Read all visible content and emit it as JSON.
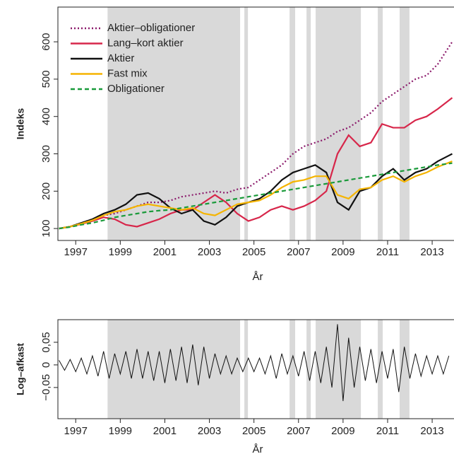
{
  "chart_data": [
    {
      "type": "line",
      "x_label": "År",
      "y_label": "Indeks",
      "x": [
        1996.25,
        1996.75,
        1997.25,
        1997.75,
        1998.25,
        1998.75,
        1999.25,
        1999.75,
        2000.25,
        2000.75,
        2001.25,
        2001.75,
        2002.25,
        2002.75,
        2003.25,
        2003.75,
        2004.25,
        2004.75,
        2005.25,
        2005.75,
        2006.25,
        2006.75,
        2007.25,
        2007.75,
        2008.25,
        2008.75,
        2009.25,
        2009.75,
        2010.25,
        2010.75,
        2011.25,
        2011.75,
        2012.25,
        2012.75,
        2013.25,
        2013.9
      ],
      "series": [
        {
          "name": "Aktier–obligationer",
          "color": "#8b1a6b",
          "dash": "dotted",
          "values": [
            100,
            105,
            115,
            125,
            135,
            140,
            150,
            160,
            170,
            170,
            175,
            185,
            190,
            195,
            200,
            195,
            205,
            210,
            230,
            250,
            270,
            300,
            320,
            330,
            340,
            360,
            370,
            390,
            410,
            440,
            460,
            480,
            500,
            510,
            540,
            600
          ]
        },
        {
          "name": "Lang–kort aktier",
          "color": "#d7264a",
          "dash": "solid",
          "values": [
            100,
            105,
            112,
            120,
            130,
            125,
            110,
            105,
            115,
            125,
            140,
            150,
            150,
            170,
            190,
            170,
            140,
            120,
            130,
            150,
            160,
            150,
            160,
            175,
            200,
            300,
            350,
            320,
            330,
            380,
            370,
            370,
            390,
            400,
            420,
            450
          ]
        },
        {
          "name": "Aktier",
          "color": "#111111",
          "dash": "solid",
          "values": [
            100,
            105,
            115,
            125,
            140,
            150,
            165,
            190,
            195,
            180,
            155,
            140,
            150,
            120,
            110,
            130,
            160,
            170,
            180,
            200,
            230,
            250,
            260,
            270,
            250,
            170,
            150,
            200,
            210,
            240,
            260,
            230,
            250,
            260,
            280,
            300
          ]
        },
        {
          "name": "Fast mix",
          "color": "#f5b400",
          "dash": "solid",
          "values": [
            100,
            105,
            113,
            122,
            135,
            145,
            150,
            160,
            165,
            160,
            155,
            150,
            155,
            140,
            135,
            150,
            165,
            170,
            175,
            190,
            210,
            225,
            230,
            240,
            240,
            190,
            180,
            205,
            210,
            230,
            240,
            225,
            240,
            250,
            265,
            280
          ]
        },
        {
          "name": "Obligationer",
          "color": "#1a9a3a",
          "dash": "dashed",
          "values": [
            100,
            104,
            110,
            115,
            122,
            130,
            135,
            140,
            145,
            148,
            150,
            155,
            160,
            165,
            170,
            175,
            180,
            185,
            190,
            195,
            200,
            205,
            210,
            215,
            220,
            225,
            230,
            235,
            240,
            245,
            250,
            255,
            260,
            265,
            270,
            275
          ]
        }
      ],
      "xlim": [
        1996.2,
        2013.98
      ],
      "ylim": [
        68,
        693
      ],
      "xticks": [
        1997,
        1999,
        2001,
        2003,
        2005,
        2007,
        2009,
        2011,
        2013
      ],
      "yticks": [
        100,
        200,
        300,
        400,
        500,
        600
      ],
      "shaded": [
        [
          1998.43,
          2004.38
        ],
        [
          2004.57,
          2004.73
        ],
        [
          2006.6,
          2006.85
        ],
        [
          2007.36,
          2007.55
        ],
        [
          2007.77,
          2009.8
        ],
        [
          2010.56,
          2010.78
        ],
        [
          2011.54,
          2011.98
        ]
      ],
      "shade_color": "#d9d9d9",
      "legend": "upper left"
    },
    {
      "type": "line",
      "x_label": "År",
      "y_label": "Log–afkast",
      "color": "#111111",
      "x": [
        1996.25,
        1996.5,
        1996.75,
        1997,
        1997.25,
        1997.5,
        1997.75,
        1998,
        1998.25,
        1998.5,
        1998.75,
        1999,
        1999.25,
        1999.5,
        1999.75,
        2000,
        2000.25,
        2000.5,
        2000.75,
        2001,
        2001.25,
        2001.5,
        2001.75,
        2002,
        2002.25,
        2002.5,
        2002.75,
        2003,
        2003.25,
        2003.5,
        2003.75,
        2004,
        2004.25,
        2004.5,
        2004.75,
        2005,
        2005.25,
        2005.5,
        2005.75,
        2006,
        2006.25,
        2006.5,
        2006.75,
        2007,
        2007.25,
        2007.5,
        2007.75,
        2008,
        2008.25,
        2008.5,
        2008.75,
        2009,
        2009.25,
        2009.5,
        2009.75,
        2010,
        2010.25,
        2010.5,
        2010.75,
        2011,
        2011.25,
        2011.5,
        2011.75,
        2012,
        2012.25,
        2012.5,
        2012.75,
        2013,
        2013.25,
        2013.5,
        2013.75
      ],
      "values": [
        0.01,
        -0.012,
        0.012,
        -0.015,
        0.015,
        -0.02,
        0.02,
        -0.025,
        0.03,
        -0.03,
        0.025,
        -0.02,
        0.03,
        -0.03,
        0.035,
        -0.03,
        0.03,
        -0.035,
        0.03,
        -0.04,
        0.035,
        -0.035,
        0.04,
        -0.04,
        0.045,
        -0.045,
        0.04,
        -0.03,
        0.025,
        -0.02,
        0.02,
        -0.02,
        0.015,
        -0.015,
        0.015,
        -0.015,
        0.015,
        -0.02,
        0.02,
        -0.03,
        0.025,
        -0.02,
        0.02,
        -0.025,
        0.03,
        -0.035,
        0.03,
        -0.04,
        0.04,
        -0.05,
        0.09,
        -0.08,
        0.06,
        -0.05,
        0.04,
        -0.035,
        0.035,
        -0.04,
        0.03,
        -0.03,
        0.035,
        -0.06,
        0.04,
        -0.03,
        0.025,
        -0.025,
        0.02,
        -0.02,
        0.02,
        -0.02,
        0.02
      ],
      "xlim": [
        1996.2,
        2013.98
      ],
      "ylim": [
        -0.119,
        0.1
      ],
      "xticks": [
        1997,
        1999,
        2001,
        2003,
        2005,
        2007,
        2009,
        2011,
        2013
      ],
      "yticks": [
        {
          "value": 0.05,
          "label": "0,05"
        },
        0,
        {
          "value": -0.05,
          "label": "−0,05"
        }
      ],
      "shaded": [
        [
          1998.43,
          2004.38
        ],
        [
          2004.57,
          2004.73
        ],
        [
          2006.6,
          2006.85
        ],
        [
          2007.36,
          2007.55
        ],
        [
          2007.77,
          2009.8
        ],
        [
          2010.56,
          2010.78
        ],
        [
          2011.54,
          2011.98
        ]
      ],
      "shade_color": "#d9d9d9"
    }
  ]
}
